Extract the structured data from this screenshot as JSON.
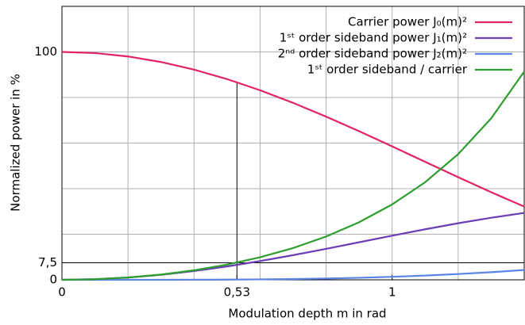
{
  "chart_data": {
    "type": "line",
    "xlabel": "Modulation depth m in rad",
    "ylabel": "Normalized power in %",
    "x": [
      0,
      0.1,
      0.2,
      0.3,
      0.4,
      0.5,
      0.6,
      0.7,
      0.8,
      0.9,
      1.0,
      1.1,
      1.2,
      1.3,
      1.4
    ],
    "series": [
      {
        "name": "Carrier power J₀(m)²",
        "color": "#e0245e",
        "values": [
          100,
          99.5,
          98.01,
          95.57,
          92.24,
          88.08,
          83.17,
          77.65,
          71.62,
          65.21,
          58.55,
          51.78,
          45.04,
          38.45,
          32.14
        ]
      },
      {
        "name": "1ˢᵗ order sideband power J₁(m)²",
        "color": "#6a3fb5",
        "values": [
          0,
          0.249,
          0.99,
          2.199,
          3.842,
          5.871,
          8.22,
          10.82,
          13.6,
          16.48,
          19.37,
          22.17,
          24.83,
          27.25,
          29.37
        ]
      },
      {
        "name": "2ⁿᵈ order sideband power J₂(m)²",
        "color": "#5b84e8",
        "values": [
          0,
          0.0002,
          0.0025,
          0.0125,
          0.0389,
          0.0936,
          0.1907,
          0.3456,
          0.5749,
          0.8947,
          1.32,
          1.866,
          2.538,
          3.349,
          4.301
        ]
      },
      {
        "name": "1ˢᵗ order sideband / carrier",
        "color": "#2e9e2e",
        "values": [
          0,
          0.2506,
          1.01,
          2.301,
          4.165,
          6.666,
          9.883,
          13.94,
          18.99,
          25.27,
          33.08,
          42.82,
          55.13,
          70.87,
          91.38
        ]
      }
    ],
    "xlim": [
      0,
      1.4
    ],
    "ylim": [
      0,
      120
    ],
    "xticks": [
      0,
      {
        "value": 0.53,
        "label": "0,53"
      },
      1
    ],
    "yticks": [
      0,
      {
        "value": 7.5,
        "label": "7,5"
      },
      100
    ],
    "xgrid": [
      0.2,
      0.4,
      0.6,
      0.8,
      1,
      1.2
    ],
    "ygrid": [
      20,
      40,
      60,
      80,
      100
    ],
    "grid": true,
    "legend": "upper right"
  }
}
